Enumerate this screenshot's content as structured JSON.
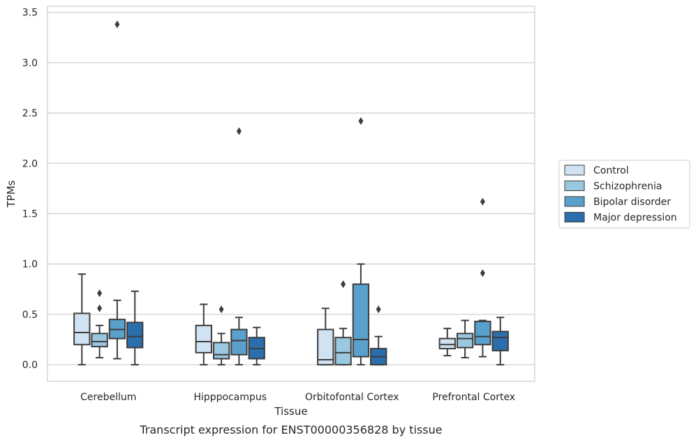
{
  "chart_data": {
    "type": "box",
    "title": "",
    "caption": "Transcript expression for ENST00000356828 by tissue",
    "xlabel": "Tissue",
    "ylabel": "TPMs",
    "ylim": [
      -0.165,
      3.56
    ],
    "yticks": [
      "0.0",
      "0.5",
      "1.0",
      "1.5",
      "2.0",
      "2.5",
      "3.0",
      "3.5"
    ],
    "grid": "horizontal",
    "legend_position": "right",
    "categories": [
      "Cerebellum",
      "Hipppocampus",
      "Orbitofontal Cortex",
      "Prefrontal Cortex"
    ],
    "series": [
      {
        "name": "Control",
        "color": "#d1e3f3",
        "boxes": [
          {
            "whislo": 0.0,
            "q1": 0.2,
            "med": 0.32,
            "q3": 0.51,
            "whishi": 0.9,
            "fliers": []
          },
          {
            "whislo": 0.0,
            "q1": 0.12,
            "med": 0.23,
            "q3": 0.39,
            "whishi": 0.6,
            "fliers": []
          },
          {
            "whislo": 0.0,
            "q1": 0.0,
            "med": 0.05,
            "q3": 0.35,
            "whishi": 0.56,
            "fliers": []
          },
          {
            "whislo": 0.09,
            "q1": 0.16,
            "med": 0.2,
            "q3": 0.26,
            "whishi": 0.36,
            "fliers": []
          }
        ]
      },
      {
        "name": "Schizophrenia",
        "color": "#9ac8e0",
        "boxes": [
          {
            "whislo": 0.07,
            "q1": 0.18,
            "med": 0.23,
            "q3": 0.31,
            "whishi": 0.39,
            "fliers": [
              0.56,
              0.71
            ]
          },
          {
            "whislo": 0.0,
            "q1": 0.06,
            "med": 0.1,
            "q3": 0.22,
            "whishi": 0.31,
            "fliers": [
              0.55
            ]
          },
          {
            "whislo": 0.0,
            "q1": 0.0,
            "med": 0.12,
            "q3": 0.27,
            "whishi": 0.36,
            "fliers": [
              0.8
            ]
          },
          {
            "whislo": 0.07,
            "q1": 0.17,
            "med": 0.26,
            "q3": 0.31,
            "whishi": 0.44,
            "fliers": []
          }
        ]
      },
      {
        "name": "Bipolar disorder",
        "color": "#5aa0cd",
        "boxes": [
          {
            "whislo": 0.06,
            "q1": 0.26,
            "med": 0.35,
            "q3": 0.45,
            "whishi": 0.64,
            "fliers": [
              3.38
            ]
          },
          {
            "whislo": 0.0,
            "q1": 0.1,
            "med": 0.24,
            "q3": 0.35,
            "whishi": 0.47,
            "fliers": [
              2.32
            ]
          },
          {
            "whislo": 0.0,
            "q1": 0.08,
            "med": 0.25,
            "q3": 0.8,
            "whishi": 1.0,
            "fliers": [
              2.42
            ]
          },
          {
            "whislo": 0.08,
            "q1": 0.2,
            "med": 0.28,
            "q3": 0.43,
            "whishi": 0.44,
            "fliers": [
              0.91,
              1.62
            ]
          }
        ]
      },
      {
        "name": "Major depression",
        "color": "#2b6ead",
        "boxes": [
          {
            "whislo": 0.0,
            "q1": 0.17,
            "med": 0.28,
            "q3": 0.42,
            "whishi": 0.73,
            "fliers": []
          },
          {
            "whislo": 0.0,
            "q1": 0.06,
            "med": 0.16,
            "q3": 0.27,
            "whishi": 0.37,
            "fliers": []
          },
          {
            "whislo": 0.0,
            "q1": 0.0,
            "med": 0.08,
            "q3": 0.16,
            "whishi": 0.28,
            "fliers": [
              0.55
            ]
          },
          {
            "whislo": 0.0,
            "q1": 0.14,
            "med": 0.27,
            "q3": 0.33,
            "whishi": 0.47,
            "fliers": []
          }
        ]
      }
    ]
  }
}
